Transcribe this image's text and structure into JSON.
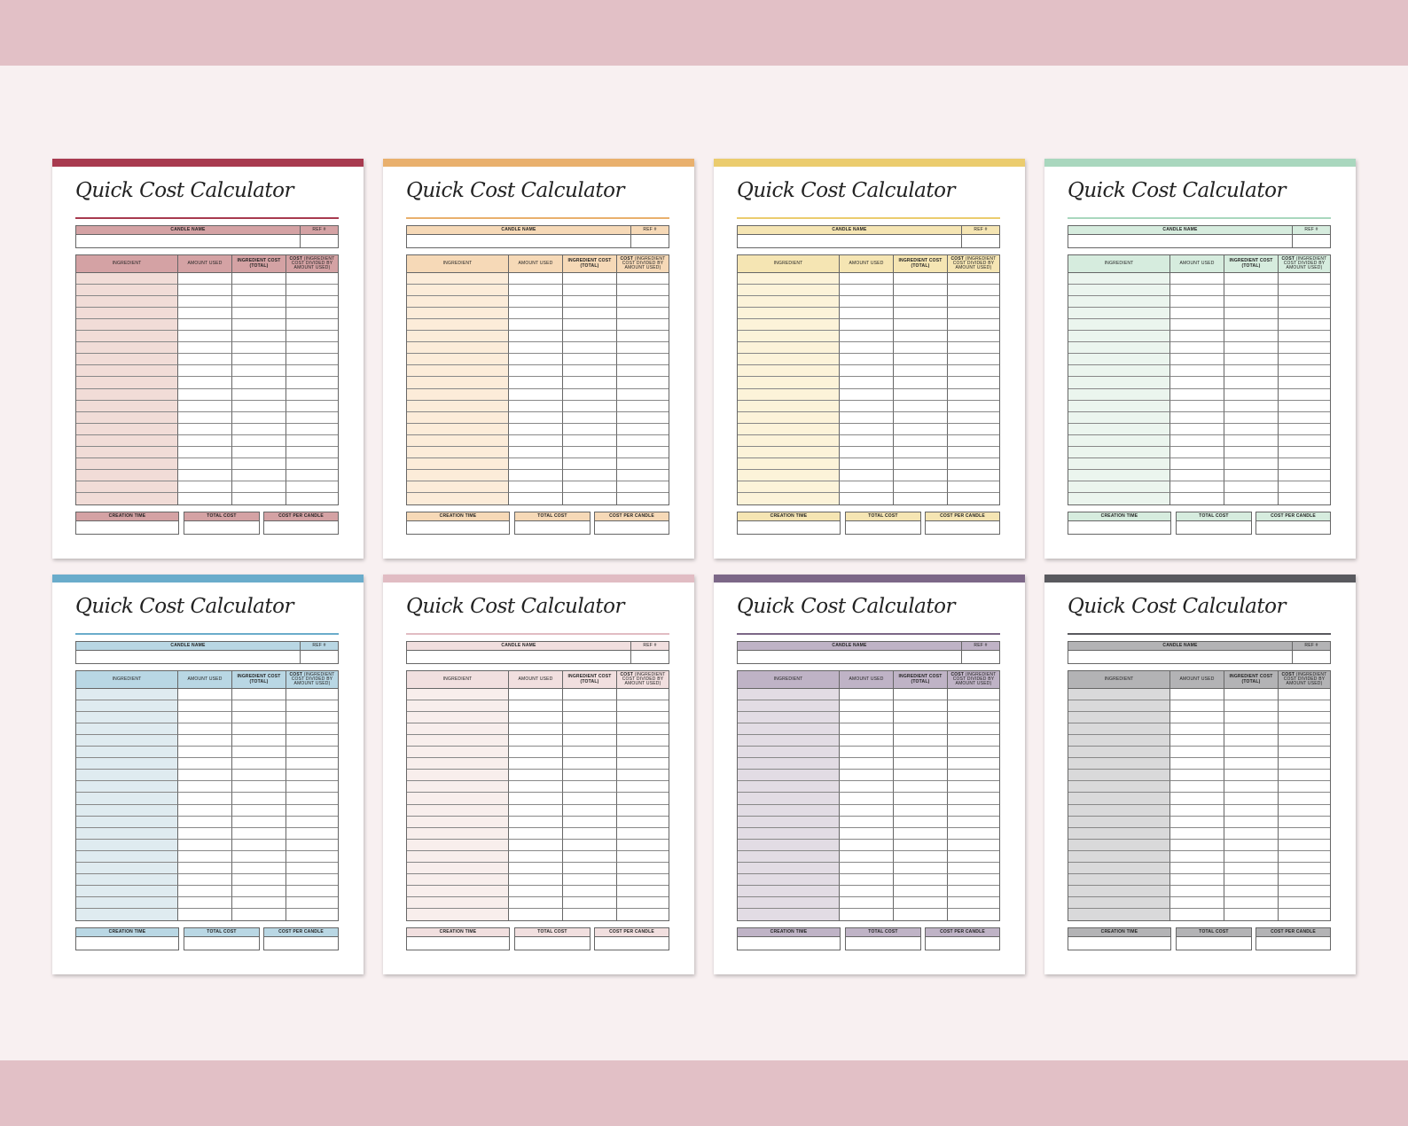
{
  "template": {
    "title": "Quick Cost Calculator",
    "candle_name_label": "CANDLE NAME",
    "ref_label": "REF #",
    "col_ingredient": "INGREDIENT",
    "col_amount_used": "AMOUNT USED",
    "col_ingredient_cost": "INGREDIENT COST (TOTAL)",
    "col_cost_bold": "COST",
    "col_cost_rest": "(INGREDIENT COST DIVIDED BY AMOUNT USED)",
    "creation_time_label": "CREATION TIME",
    "total_cost_label": "TOTAL COST",
    "cost_per_candle_label": "COST PER CANDLE",
    "row_count": 20
  },
  "colors": {
    "page_background": "#f8f0f1",
    "band": "#e2c0c6"
  },
  "variants": [
    {
      "name": "red",
      "accent": "#a83a4f",
      "header": "#d4a2a4",
      "column": "#f1dcd7"
    },
    {
      "name": "orange",
      "accent": "#e9b06d",
      "header": "#f6d9b7",
      "column": "#fcecd9"
    },
    {
      "name": "yellow",
      "accent": "#ebcc6e",
      "header": "#f5e5b3",
      "column": "#fcf3d9"
    },
    {
      "name": "green",
      "accent": "#a9d7be",
      "header": "#d6ecde",
      "column": "#ebf5ee"
    },
    {
      "name": "blue",
      "accent": "#6aaccb",
      "header": "#b9d7e4",
      "column": "#dfebf0"
    },
    {
      "name": "pink",
      "accent": "#e1bcc3",
      "header": "#f1dfdf",
      "column": "#f8eeec"
    },
    {
      "name": "purple",
      "accent": "#7c6787",
      "header": "#bfb3c6",
      "column": "#e2dce4"
    },
    {
      "name": "gray",
      "accent": "#59595e",
      "header": "#b3b3b5",
      "column": "#d9d9da"
    }
  ]
}
